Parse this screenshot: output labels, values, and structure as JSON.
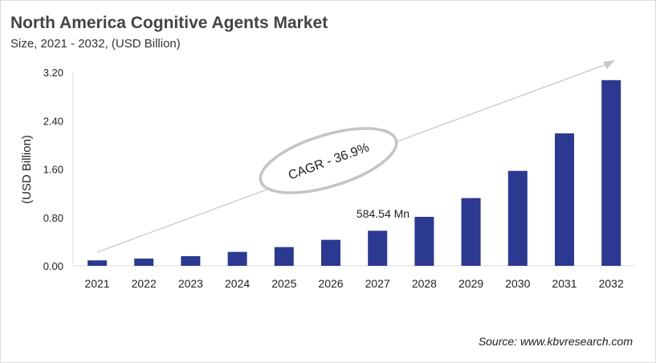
{
  "chart_data": {
    "type": "bar",
    "title": "North America Cognitive Agents Market",
    "subtitle": "Size, 2021 - 2032, (USD Billion)",
    "ylabel": "(USD Billion)",
    "xlabel": "",
    "ylim": [
      0,
      3.2
    ],
    "yticks": [
      "0.00",
      "0.80",
      "1.60",
      "2.40",
      "3.20"
    ],
    "categories": [
      "2021",
      "2022",
      "2023",
      "2024",
      "2025",
      "2026",
      "2027",
      "2028",
      "2029",
      "2030",
      "2031",
      "2032"
    ],
    "values": [
      0.09,
      0.12,
      0.16,
      0.23,
      0.31,
      0.43,
      0.58,
      0.81,
      1.12,
      1.57,
      2.19,
      3.07
    ],
    "bar_color": "#2b3990",
    "annotations": {
      "value_label": "584.54 Mn",
      "cagr": "CAGR - 36.9%"
    },
    "grid": false
  },
  "source": "Source: www.kbvresearch.com"
}
